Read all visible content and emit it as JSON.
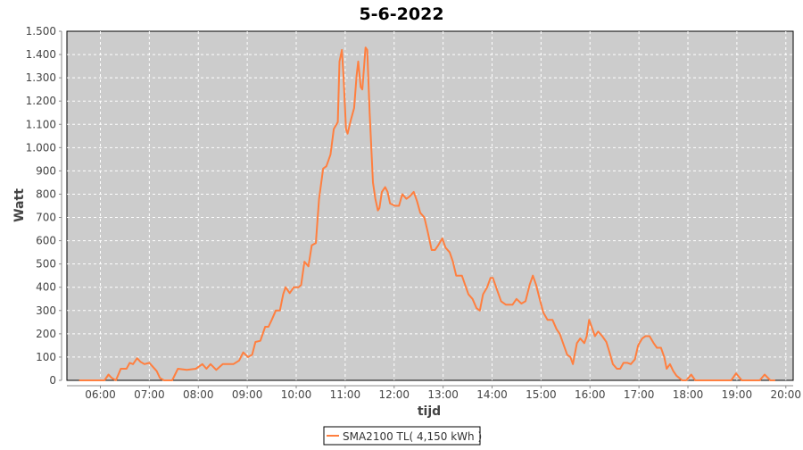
{
  "chart_data": {
    "type": "line",
    "title": "5-6-2022",
    "xlabel": "tijd",
    "ylabel": "Watt",
    "xlim": [
      "05:19",
      "20:09"
    ],
    "ylim": [
      0,
      1500
    ],
    "grid": true,
    "legend_position": "bottom",
    "background_color": "#cccccc",
    "xticks": [
      "06:00",
      "07:00",
      "08:00",
      "09:00",
      "10:00",
      "11:00",
      "12:00",
      "13:00",
      "14:00",
      "15:00",
      "16:00",
      "17:00",
      "18:00",
      "19:00",
      "20:00"
    ],
    "yticks": [
      0,
      100,
      200,
      300,
      400,
      500,
      600,
      700,
      800,
      900,
      1000,
      1100,
      1200,
      1300,
      1400,
      1500
    ],
    "ytick_labels": [
      "0",
      "100",
      "200",
      "300",
      "400",
      "500",
      "600",
      "700",
      "800",
      "900",
      "1.000",
      "1.100",
      "1.200",
      "1.300",
      "1.400",
      "1.500"
    ],
    "series": [
      {
        "name": "SMA2100 TL( 4,150 kWh )",
        "color": "#ff7f3f",
        "x": [
          "05:34",
          "06:05",
          "06:10",
          "06:14",
          "06:19",
          "06:25",
          "06:32",
          "06:36",
          "06:40",
          "06:45",
          "06:49",
          "06:54",
          "07:00",
          "07:09",
          "07:13",
          "07:18",
          "07:28",
          "07:35",
          "07:46",
          "07:57",
          "08:05",
          "08:10",
          "08:15",
          "08:22",
          "08:30",
          "08:43",
          "08:50",
          "08:55",
          "09:01",
          "09:06",
          "09:10",
          "09:16",
          "09:22",
          "09:26",
          "09:30",
          "09:35",
          "09:40",
          "09:44",
          "09:47",
          "09:52",
          "09:57",
          "10:03",
          "10:06",
          "10:10",
          "10:15",
          "10:19",
          "10:24",
          "10:28",
          "10:33",
          "10:37",
          "10:42",
          "10:46",
          "10:51",
          "10:53",
          "10:56",
          "10:58",
          "11:01",
          "11:03",
          "11:07",
          "11:11",
          "11:14",
          "11:16",
          "11:19",
          "11:21",
          "11:25",
          "11:27",
          "11:30",
          "11:34",
          "11:37",
          "11:40",
          "11:42",
          "11:45",
          "11:49",
          "11:52",
          "11:55",
          "12:01",
          "12:06",
          "12:10",
          "12:15",
          "12:19",
          "12:24",
          "12:28",
          "12:32",
          "12:37",
          "12:41",
          "12:46",
          "12:50",
          "12:54",
          "12:59",
          "13:03",
          "13:08",
          "13:12",
          "13:16",
          "13:23",
          "13:27",
          "13:31",
          "13:36",
          "13:41",
          "13:45",
          "13:49",
          "13:54",
          "13:58",
          "14:01",
          "14:07",
          "14:11",
          "14:17",
          "14:25",
          "14:30",
          "14:36",
          "14:41",
          "14:46",
          "14:50",
          "14:54",
          "14:59",
          "15:03",
          "15:08",
          "15:14",
          "15:19",
          "15:23",
          "15:28",
          "15:32",
          "15:36",
          "15:39",
          "15:44",
          "15:48",
          "15:53",
          "15:56",
          "15:59",
          "16:02",
          "16:06",
          "16:10",
          "16:15",
          "16:20",
          "16:24",
          "16:28",
          "16:33",
          "16:37",
          "16:41",
          "16:46",
          "16:50",
          "16:55",
          "16:59",
          "17:04",
          "17:08",
          "17:13",
          "17:18",
          "17:22",
          "17:27",
          "17:31",
          "17:34",
          "17:38",
          "17:42",
          "17:46",
          "17:53",
          "17:58",
          "18:04",
          "18:09",
          "18:53",
          "18:59",
          "19:06",
          "19:28",
          "19:34",
          "19:41",
          "19:47"
        ],
        "y": [
          0,
          0,
          25,
          10,
          0,
          50,
          50,
          75,
          70,
          95,
          80,
          70,
          75,
          40,
          10,
          0,
          0,
          50,
          45,
          50,
          70,
          50,
          70,
          45,
          70,
          70,
          85,
          120,
          100,
          110,
          165,
          170,
          230,
          230,
          260,
          300,
          300,
          370,
          400,
          375,
          400,
          400,
          410,
          510,
          490,
          580,
          590,
          780,
          910,
          920,
          970,
          1080,
          1110,
          1370,
          1420,
          1300,
          1080,
          1060,
          1120,
          1170,
          1310,
          1370,
          1260,
          1250,
          1430,
          1420,
          1150,
          850,
          780,
          730,
          740,
          810,
          830,
          810,
          760,
          750,
          750,
          800,
          780,
          790,
          810,
          770,
          720,
          700,
          640,
          560,
          560,
          580,
          610,
          570,
          550,
          510,
          450,
          450,
          410,
          370,
          350,
          310,
          300,
          370,
          400,
          440,
          440,
          380,
          340,
          325,
          325,
          350,
          330,
          340,
          410,
          450,
          410,
          340,
          290,
          260,
          260,
          220,
          200,
          150,
          110,
          100,
          70,
          160,
          180,
          160,
          190,
          260,
          230,
          190,
          210,
          190,
          165,
          120,
          70,
          50,
          50,
          75,
          75,
          70,
          90,
          150,
          180,
          190,
          190,
          160,
          140,
          140,
          100,
          50,
          70,
          40,
          20,
          0,
          0,
          25,
          0,
          0,
          30,
          0,
          0,
          25,
          0,
          0
        ]
      }
    ]
  }
}
